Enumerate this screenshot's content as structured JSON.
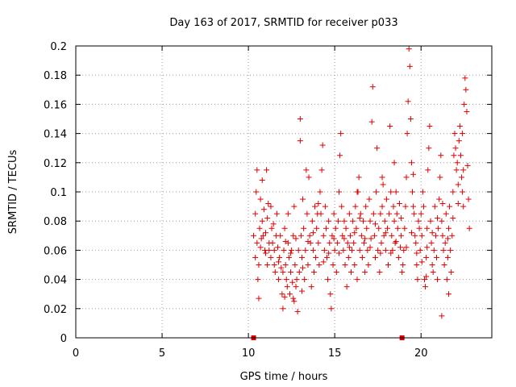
{
  "chart_data": {
    "type": "scatter",
    "title": "Day 163 of 2017, SRMTID for receiver p033",
    "xlabel": "GPS time / hours",
    "ylabel": "SRMTID / TECUs",
    "xlim": [
      0,
      24.1
    ],
    "ylim": [
      0,
      0.2
    ],
    "xticks": [
      0,
      5,
      10,
      15,
      20
    ],
    "xtick_labels": [
      "0",
      "5",
      "10",
      "15",
      "20"
    ],
    "yticks": [
      0,
      0.02,
      0.04,
      0.06,
      0.08,
      0.1,
      0.12,
      0.14,
      0.16,
      0.18,
      0.2
    ],
    "ytick_labels": [
      "0",
      "0.02",
      "0.04",
      "0.06",
      "0.08",
      "0.1",
      "0.12",
      "0.14",
      "0.16",
      "0.18",
      "0.2"
    ],
    "grid": true,
    "marker": "+",
    "color": "#e00000",
    "zero_markers": [
      {
        "x": 10.3,
        "y": 0
      },
      {
        "x": 18.9,
        "y": 0
      }
    ],
    "series": [
      {
        "name": "SRMTID",
        "points": [
          [
            10.3,
            0.07
          ],
          [
            10.4,
            0.085
          ],
          [
            10.4,
            0.055
          ],
          [
            10.5,
            0.115
          ],
          [
            10.5,
            0.065
          ],
          [
            10.55,
            0.04
          ],
          [
            10.6,
            0.027
          ],
          [
            10.6,
            0.05
          ],
          [
            10.65,
            0.075
          ],
          [
            10.7,
            0.095
          ],
          [
            10.7,
            0.062
          ],
          [
            10.8,
            0.108
          ],
          [
            10.8,
            0.08
          ],
          [
            10.85,
            0.07
          ],
          [
            10.9,
            0.088
          ],
          [
            10.95,
            0.06
          ],
          [
            11.0,
            0.058
          ],
          [
            11.0,
            0.072
          ],
          [
            11.05,
            0.115
          ],
          [
            11.1,
            0.05
          ],
          [
            11.1,
            0.082
          ],
          [
            11.2,
            0.065
          ],
          [
            11.2,
            0.06
          ],
          [
            11.3,
            0.09
          ],
          [
            11.3,
            0.055
          ],
          [
            11.35,
            0.075
          ],
          [
            11.4,
            0.065
          ],
          [
            11.5,
            0.06
          ],
          [
            11.5,
            0.05
          ],
          [
            11.55,
            0.045
          ],
          [
            11.6,
            0.07
          ],
          [
            11.65,
            0.085
          ],
          [
            11.7,
            0.062
          ],
          [
            11.75,
            0.04
          ],
          [
            11.8,
            0.055
          ],
          [
            11.85,
            0.07
          ],
          [
            11.9,
            0.048
          ],
          [
            11.95,
            0.03
          ],
          [
            12.0,
            0.02
          ],
          [
            12.0,
            0.045
          ],
          [
            12.05,
            0.06
          ],
          [
            12.1,
            0.075
          ],
          [
            12.15,
            0.05
          ],
          [
            12.2,
            0.04
          ],
          [
            12.25,
            0.035
          ],
          [
            12.3,
            0.065
          ],
          [
            12.3,
            0.085
          ],
          [
            12.35,
            0.055
          ],
          [
            12.4,
            0.03
          ],
          [
            12.45,
            0.045
          ],
          [
            12.5,
            0.06
          ],
          [
            12.55,
            0.038
          ],
          [
            12.6,
            0.027
          ],
          [
            12.6,
            0.07
          ],
          [
            12.65,
            0.09
          ],
          [
            12.7,
            0.05
          ],
          [
            12.75,
            0.035
          ],
          [
            12.8,
            0.04
          ],
          [
            12.85,
            0.018
          ],
          [
            12.9,
            0.06
          ],
          [
            12.95,
            0.045
          ],
          [
            13.0,
            0.15
          ],
          [
            13.0,
            0.135
          ],
          [
            13.05,
            0.07
          ],
          [
            13.1,
            0.055
          ],
          [
            13.15,
            0.095
          ],
          [
            13.2,
            0.075
          ],
          [
            13.25,
            0.04
          ],
          [
            13.3,
            0.06
          ],
          [
            13.35,
            0.115
          ],
          [
            13.4,
            0.085
          ],
          [
            13.45,
            0.05
          ],
          [
            13.5,
            0.11
          ],
          [
            13.55,
            0.07
          ],
          [
            13.6,
            0.065
          ],
          [
            13.65,
            0.035
          ],
          [
            13.7,
            0.08
          ],
          [
            13.75,
            0.06
          ],
          [
            13.8,
            0.045
          ],
          [
            13.85,
            0.09
          ],
          [
            13.9,
            0.055
          ],
          [
            13.95,
            0.075
          ],
          [
            14.0,
            0.085
          ],
          [
            14.05,
            0.065
          ],
          [
            14.1,
            0.05
          ],
          [
            14.15,
            0.1
          ],
          [
            14.2,
            0.085
          ],
          [
            14.25,
            0.115
          ],
          [
            14.3,
            0.132
          ],
          [
            14.35,
            0.07
          ],
          [
            14.4,
            0.06
          ],
          [
            14.45,
            0.09
          ],
          [
            14.5,
            0.075
          ],
          [
            14.55,
            0.055
          ],
          [
            14.6,
            0.04
          ],
          [
            14.65,
            0.08
          ],
          [
            14.7,
            0.065
          ],
          [
            14.75,
            0.03
          ],
          [
            14.8,
            0.02
          ],
          [
            14.85,
            0.07
          ],
          [
            14.9,
            0.05
          ],
          [
            14.95,
            0.085
          ],
          [
            15.0,
            0.06
          ],
          [
            15.05,
            0.075
          ],
          [
            15.1,
            0.045
          ],
          [
            15.15,
            0.065
          ],
          [
            15.2,
            0.08
          ],
          [
            15.25,
            0.1
          ],
          [
            15.3,
            0.125
          ],
          [
            15.35,
            0.14
          ],
          [
            15.4,
            0.09
          ],
          [
            15.45,
            0.07
          ],
          [
            15.5,
            0.06
          ],
          [
            15.55,
            0.08
          ],
          [
            15.6,
            0.05
          ],
          [
            15.65,
            0.075
          ],
          [
            15.7,
            0.035
          ],
          [
            15.75,
            0.065
          ],
          [
            15.8,
            0.055
          ],
          [
            15.85,
            0.085
          ],
          [
            15.9,
            0.07
          ],
          [
            15.95,
            0.045
          ],
          [
            16.0,
            0.06
          ],
          [
            16.05,
            0.08
          ],
          [
            16.1,
            0.065
          ],
          [
            16.15,
            0.05
          ],
          [
            16.2,
            0.09
          ],
          [
            16.25,
            0.075
          ],
          [
            16.3,
            0.04
          ],
          [
            16.35,
            0.1
          ],
          [
            16.4,
            0.11
          ],
          [
            16.45,
            0.06
          ],
          [
            16.5,
            0.085
          ],
          [
            16.55,
            0.07
          ],
          [
            16.6,
            0.055
          ],
          [
            16.65,
            0.08
          ],
          [
            16.7,
            0.065
          ],
          [
            16.75,
            0.045
          ],
          [
            16.8,
            0.09
          ],
          [
            16.85,
            0.075
          ],
          [
            16.9,
            0.06
          ],
          [
            16.95,
            0.05
          ],
          [
            17.0,
            0.095
          ],
          [
            17.05,
            0.08
          ],
          [
            17.1,
            0.068
          ],
          [
            17.15,
            0.148
          ],
          [
            17.2,
            0.172
          ],
          [
            17.25,
            0.085
          ],
          [
            17.3,
            0.07
          ],
          [
            17.35,
            0.055
          ],
          [
            17.4,
            0.1
          ],
          [
            17.45,
            0.13
          ],
          [
            17.5,
            0.06
          ],
          [
            17.55,
            0.075
          ],
          [
            17.6,
            0.045
          ],
          [
            17.65,
            0.085
          ],
          [
            17.7,
            0.065
          ],
          [
            17.75,
            0.09
          ],
          [
            17.8,
            0.105
          ],
          [
            17.85,
            0.07
          ],
          [
            17.9,
            0.08
          ],
          [
            17.95,
            0.06
          ],
          [
            18.0,
            0.095
          ],
          [
            18.05,
            0.075
          ],
          [
            18.1,
            0.05
          ],
          [
            18.15,
            0.085
          ],
          [
            18.2,
            0.145
          ],
          [
            18.25,
            0.1
          ],
          [
            18.3,
            0.07
          ],
          [
            18.35,
            0.06
          ],
          [
            18.4,
            0.09
          ],
          [
            18.45,
            0.08
          ],
          [
            18.5,
            0.065
          ],
          [
            18.55,
            0.1
          ],
          [
            18.6,
            0.085
          ],
          [
            18.65,
            0.075
          ],
          [
            18.7,
            0.055
          ],
          [
            18.75,
            0.092
          ],
          [
            18.8,
            0.062
          ],
          [
            18.85,
            0.07
          ],
          [
            18.9,
            0.045
          ],
          [
            18.95,
            0.05
          ],
          [
            19.0,
            0.06
          ],
          [
            19.05,
            0.075
          ],
          [
            19.1,
            0.09
          ],
          [
            19.15,
            0.11
          ],
          [
            19.2,
            0.14
          ],
          [
            19.25,
            0.162
          ],
          [
            19.3,
            0.198
          ],
          [
            19.35,
            0.186
          ],
          [
            19.4,
            0.15
          ],
          [
            19.45,
            0.12
          ],
          [
            19.5,
            0.1
          ],
          [
            19.55,
            0.09
          ],
          [
            19.6,
            0.085
          ],
          [
            19.65,
            0.07
          ],
          [
            19.7,
            0.065
          ],
          [
            19.75,
            0.05
          ],
          [
            19.8,
            0.04
          ],
          [
            19.85,
            0.08
          ],
          [
            19.9,
            0.075
          ],
          [
            19.95,
            0.06
          ],
          [
            20.0,
            0.085
          ],
          [
            20.05,
            0.07
          ],
          [
            20.1,
            0.1
          ],
          [
            20.15,
            0.09
          ],
          [
            20.2,
            0.04
          ],
          [
            20.25,
            0.035
          ],
          [
            20.3,
            0.055
          ],
          [
            20.35,
            0.075
          ],
          [
            20.4,
            0.115
          ],
          [
            20.45,
            0.13
          ],
          [
            20.5,
            0.145
          ],
          [
            20.55,
            0.08
          ],
          [
            20.6,
            0.065
          ],
          [
            20.65,
            0.05
          ],
          [
            20.7,
            0.045
          ],
          [
            20.75,
            0.06
          ],
          [
            20.8,
            0.09
          ],
          [
            20.85,
            0.07
          ],
          [
            20.9,
            0.055
          ],
          [
            20.95,
            0.04
          ],
          [
            21.0,
            0.075
          ],
          [
            21.05,
            0.095
          ],
          [
            21.1,
            0.11
          ],
          [
            21.15,
            0.125
          ],
          [
            21.2,
            0.08
          ],
          [
            21.25,
            0.07
          ],
          [
            21.3,
            0.06
          ],
          [
            21.35,
            0.05
          ],
          [
            21.4,
            0.065
          ],
          [
            21.45,
            0.085
          ],
          [
            21.5,
            0.04
          ],
          [
            21.55,
            0.055
          ],
          [
            21.6,
            0.075
          ],
          [
            21.65,
            0.09
          ],
          [
            21.7,
            0.06
          ],
          [
            21.75,
            0.045
          ],
          [
            21.8,
            0.07
          ],
          [
            21.85,
            0.1
          ],
          [
            21.9,
            0.125
          ],
          [
            21.95,
            0.14
          ],
          [
            22.0,
            0.13
          ],
          [
            22.05,
            0.115
          ],
          [
            22.1,
            0.12
          ],
          [
            22.15,
            0.105
          ],
          [
            22.2,
            0.135
          ],
          [
            22.25,
            0.145
          ],
          [
            22.3,
            0.125
          ],
          [
            22.35,
            0.11
          ],
          [
            22.4,
            0.1
          ],
          [
            22.45,
            0.09
          ],
          [
            22.5,
            0.16
          ],
          [
            22.55,
            0.178
          ],
          [
            22.6,
            0.17
          ],
          [
            22.65,
            0.155
          ],
          [
            22.7,
            0.118
          ],
          [
            22.75,
            0.095
          ],
          [
            22.8,
            0.075
          ],
          [
            22.4,
            0.14
          ],
          [
            10.45,
            0.1
          ],
          [
            10.75,
            0.068
          ],
          [
            11.15,
            0.092
          ],
          [
            11.45,
            0.078
          ],
          [
            11.75,
            0.052
          ],
          [
            12.15,
            0.066
          ],
          [
            12.45,
            0.058
          ],
          [
            12.75,
            0.068
          ],
          [
            13.15,
            0.048
          ],
          [
            13.45,
            0.066
          ],
          [
            13.75,
            0.072
          ],
          [
            14.05,
            0.092
          ],
          [
            14.35,
            0.052
          ],
          [
            14.65,
            0.058
          ],
          [
            14.95,
            0.068
          ],
          [
            15.25,
            0.058
          ],
          [
            15.55,
            0.068
          ],
          [
            15.85,
            0.062
          ],
          [
            16.15,
            0.072
          ],
          [
            16.45,
            0.082
          ],
          [
            16.75,
            0.068
          ],
          [
            17.05,
            0.062
          ],
          [
            17.35,
            0.078
          ],
          [
            17.65,
            0.058
          ],
          [
            17.95,
            0.072
          ],
          [
            18.25,
            0.058
          ],
          [
            18.55,
            0.066
          ],
          [
            18.85,
            0.082
          ],
          [
            19.15,
            0.062
          ],
          [
            19.45,
            0.072
          ],
          [
            19.75,
            0.058
          ],
          [
            20.05,
            0.052
          ],
          [
            20.35,
            0.062
          ],
          [
            20.65,
            0.072
          ],
          [
            20.95,
            0.082
          ],
          [
            21.25,
            0.092
          ],
          [
            21.55,
            0.068
          ],
          [
            21.85,
            0.082
          ],
          [
            22.15,
            0.092
          ],
          [
            22.45,
            0.115
          ],
          [
            12.1,
            0.028
          ],
          [
            12.65,
            0.025
          ],
          [
            13.1,
            0.032
          ],
          [
            16.3,
            0.1
          ],
          [
            18.45,
            0.12
          ],
          [
            19.55,
            0.112
          ],
          [
            21.2,
            0.015
          ],
          [
            21.6,
            0.03
          ],
          [
            20.3,
            0.042
          ],
          [
            17.75,
            0.11
          ]
        ]
      }
    ]
  }
}
